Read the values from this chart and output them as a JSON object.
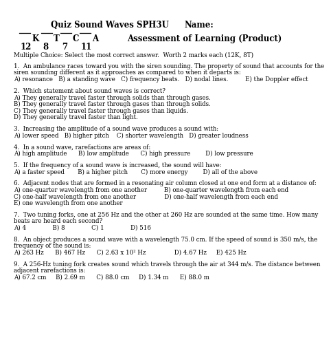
{
  "title1": "Quiz Sound Waves SPH3U",
  "title2": "Name:",
  "subtitle": "Assessment of Learning (Product)",
  "grade_items": [
    {
      "letter": "K",
      "denom": "12"
    },
    {
      "letter": "T",
      "denom": "8"
    },
    {
      "letter": "C",
      "denom": "7"
    },
    {
      "letter": "A",
      "denom": "11"
    }
  ],
  "instruction": "Multiple Choice: Select the most correct answer.  Worth 2 marks each (12K, 8T)",
  "questions": [
    {
      "lines": [
        "1.  An ambulance races toward you with the siren sounding. The property of sound that accounts for the",
        "siren sounding different as it approaches as compared to when it departs is:",
        "A) resonance   B) a standing wave   C) frequency beats.   D) nodal lines.         E) the Doppler effect"
      ]
    },
    {
      "lines": [
        "2.  Which statement about sound waves is correct?",
        "A) They generally travel faster through solids than through gases.",
        "B) They generally travel faster through gases than through solids.",
        "C) They generally travel faster through gases than liquids.",
        "D) They generally travel faster than light."
      ]
    },
    {
      "lines": [
        "3.  Increasing the amplitude of a sound wave produces a sound with:",
        "A) lower speed   B) higher pitch    C) shorter wavelength   D) greater loudness"
      ]
    },
    {
      "lines": [
        "4.  In a sound wave, rarefactions are areas of:",
        "A) high amplitude      B) low amplitude      C) high pressure        D) low pressure"
      ]
    },
    {
      "lines": [
        "5.  If the frequency of a sound wave is increased, the sound will have:",
        "A) a faster speed       B) a higher pitch       C) more energy        D) all of the above"
      ]
    },
    {
      "lines": [
        "6.  Adjacent nodes that are formed in a resonating air column closed at one end form at a distance of:",
        "A) one-quarter wavelength from one another         B) one-quarter wavelength from each end",
        "C) one-half wavelength from one another               D) one-half wavelength from each end",
        "E) one wavelength from one another"
      ]
    },
    {
      "lines": [
        "7.  Two tuning forks, one at 256 Hz and the other at 260 Hz are sounded at the same time. How many",
        "beats are heard each second?",
        "A) 4              B) 8              C) 1              D) 516"
      ]
    },
    {
      "lines": [
        "8.  An object produces a sound wave with a wavelength 75.0 cm. If the speed of sound is 350 m/s, the",
        "frequency of the sound is:",
        "A) 263 Hz      B) 467 Hz      C) 2.63 x 10² Hz               D) 4.67 Hz     E) 425 Hz"
      ]
    },
    {
      "lines": [
        "9.  A 256-Hz tuning fork creates sound which travels through the air at 344 m/s. The distance between",
        "adjacent rarefactions is:",
        "A) 67.2 cm     B) 2.69 m      C) 88.0 cm     D) 1.34 m      E) 88.0 m"
      ]
    }
  ],
  "bg_color": "#ffffff",
  "text_color": "#000000"
}
